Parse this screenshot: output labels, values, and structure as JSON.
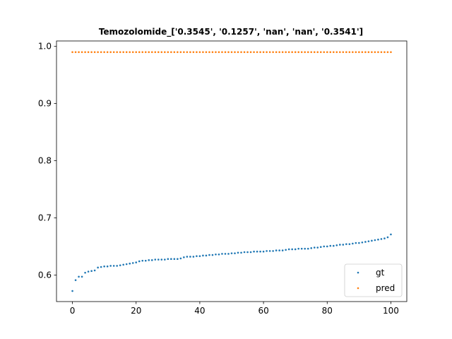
{
  "chart_data": {
    "type": "scatter",
    "title": "Temozolomide_['0.3545', '0.1257', 'nan', 'nan', '0.3541']",
    "xlabel": "",
    "ylabel": "",
    "xlim": [
      -5,
      105
    ],
    "ylim": [
      0.5535,
      1.0095
    ],
    "xticks": [
      0,
      20,
      40,
      60,
      80,
      100
    ],
    "yticks": [
      0.6,
      0.7,
      0.8,
      0.9,
      1.0
    ],
    "xtick_labels": [
      "0",
      "20",
      "40",
      "60",
      "80",
      "100"
    ],
    "ytick_labels": [
      "0.6",
      "0.7",
      "0.8",
      "0.9",
      "1.0"
    ],
    "grid": false,
    "legend": {
      "placement": "lower-right",
      "entries": [
        "gt",
        "pred"
      ]
    },
    "series": [
      {
        "name": "gt",
        "color": "#1f77b4",
        "x": [
          0,
          1,
          2,
          3,
          4,
          5,
          6,
          7,
          8,
          9,
          10,
          11,
          12,
          13,
          14,
          15,
          16,
          17,
          18,
          19,
          20,
          21,
          22,
          23,
          24,
          25,
          26,
          27,
          28,
          29,
          30,
          31,
          32,
          33,
          34,
          35,
          36,
          37,
          38,
          39,
          40,
          41,
          42,
          43,
          44,
          45,
          46,
          47,
          48,
          49,
          50,
          51,
          52,
          53,
          54,
          55,
          56,
          57,
          58,
          59,
          60,
          61,
          62,
          63,
          64,
          65,
          66,
          67,
          68,
          69,
          70,
          71,
          72,
          73,
          74,
          75,
          76,
          77,
          78,
          79,
          80,
          81,
          82,
          83,
          84,
          85,
          86,
          87,
          88,
          89,
          90,
          91,
          92,
          93,
          94,
          95,
          96,
          97,
          98,
          99,
          100
        ],
        "y": [
          0.572,
          0.591,
          0.597,
          0.597,
          0.604,
          0.606,
          0.607,
          0.608,
          0.613,
          0.614,
          0.615,
          0.615,
          0.616,
          0.616,
          0.616,
          0.617,
          0.618,
          0.619,
          0.62,
          0.621,
          0.622,
          0.624,
          0.625,
          0.625,
          0.626,
          0.626,
          0.627,
          0.627,
          0.627,
          0.627,
          0.628,
          0.628,
          0.628,
          0.628,
          0.629,
          0.631,
          0.632,
          0.632,
          0.632,
          0.633,
          0.633,
          0.634,
          0.634,
          0.635,
          0.635,
          0.636,
          0.636,
          0.637,
          0.637,
          0.637,
          0.638,
          0.638,
          0.639,
          0.639,
          0.64,
          0.64,
          0.64,
          0.641,
          0.641,
          0.641,
          0.641,
          0.642,
          0.642,
          0.642,
          0.643,
          0.643,
          0.643,
          0.644,
          0.645,
          0.645,
          0.645,
          0.646,
          0.646,
          0.646,
          0.646,
          0.647,
          0.648,
          0.648,
          0.649,
          0.65,
          0.65,
          0.651,
          0.651,
          0.652,
          0.653,
          0.653,
          0.654,
          0.654,
          0.655,
          0.656,
          0.656,
          0.657,
          0.658,
          0.659,
          0.66,
          0.661,
          0.662,
          0.663,
          0.664,
          0.666,
          0.671
        ]
      },
      {
        "name": "pred",
        "color": "#ff7f0e",
        "x": [
          0,
          1,
          2,
          3,
          4,
          5,
          6,
          7,
          8,
          9,
          10,
          11,
          12,
          13,
          14,
          15,
          16,
          17,
          18,
          19,
          20,
          21,
          22,
          23,
          24,
          25,
          26,
          27,
          28,
          29,
          30,
          31,
          32,
          33,
          34,
          35,
          36,
          37,
          38,
          39,
          40,
          41,
          42,
          43,
          44,
          45,
          46,
          47,
          48,
          49,
          50,
          51,
          52,
          53,
          54,
          55,
          56,
          57,
          58,
          59,
          60,
          61,
          62,
          63,
          64,
          65,
          66,
          67,
          68,
          69,
          70,
          71,
          72,
          73,
          74,
          75,
          76,
          77,
          78,
          79,
          80,
          81,
          82,
          83,
          84,
          85,
          86,
          87,
          88,
          89,
          90,
          91,
          92,
          93,
          94,
          95,
          96,
          97,
          98,
          99,
          100
        ],
        "y": [
          0.99,
          0.99,
          0.99,
          0.99,
          0.99,
          0.99,
          0.99,
          0.99,
          0.99,
          0.99,
          0.99,
          0.99,
          0.99,
          0.99,
          0.99,
          0.99,
          0.99,
          0.99,
          0.99,
          0.99,
          0.99,
          0.99,
          0.99,
          0.99,
          0.99,
          0.99,
          0.99,
          0.99,
          0.99,
          0.99,
          0.99,
          0.99,
          0.99,
          0.99,
          0.99,
          0.99,
          0.99,
          0.99,
          0.99,
          0.99,
          0.99,
          0.99,
          0.99,
          0.99,
          0.99,
          0.99,
          0.99,
          0.99,
          0.99,
          0.99,
          0.99,
          0.99,
          0.99,
          0.99,
          0.99,
          0.99,
          0.99,
          0.99,
          0.99,
          0.99,
          0.99,
          0.99,
          0.99,
          0.99,
          0.99,
          0.99,
          0.99,
          0.99,
          0.99,
          0.99,
          0.99,
          0.99,
          0.99,
          0.99,
          0.99,
          0.99,
          0.99,
          0.99,
          0.99,
          0.99,
          0.99,
          0.99,
          0.99,
          0.99,
          0.99,
          0.99,
          0.99,
          0.99,
          0.99,
          0.99,
          0.99,
          0.99,
          0.99,
          0.99,
          0.99,
          0.99,
          0.99,
          0.99,
          0.99,
          0.99,
          0.99
        ]
      }
    ]
  }
}
